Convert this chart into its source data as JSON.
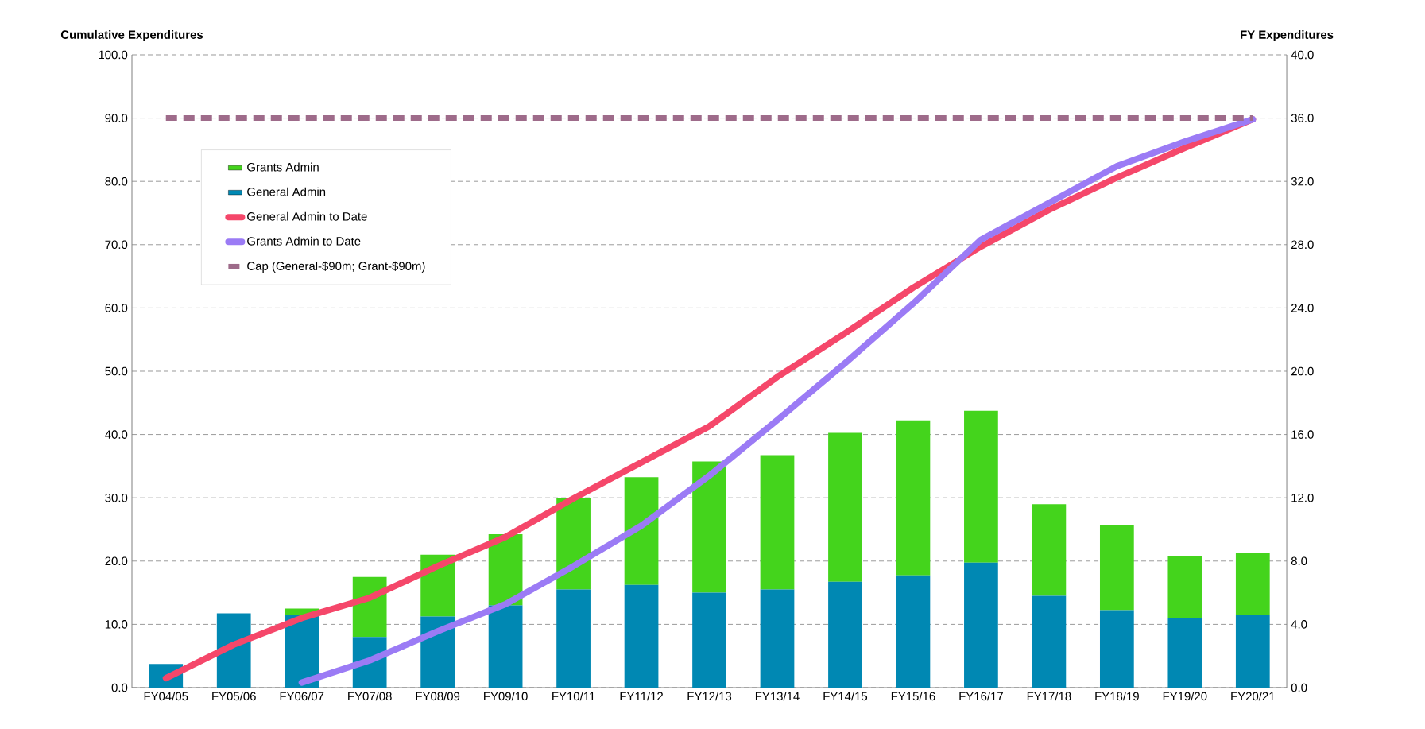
{
  "chart_data": {
    "type": "bar",
    "stacked": true,
    "categories": [
      "FY04/05",
      "FY05/06",
      "FY06/07",
      "FY07/08",
      "FY08/09",
      "FY09/10",
      "FY10/11",
      "FY11/12",
      "FY12/13",
      "FY13/14",
      "FY14/15",
      "FY15/16",
      "FY16/17",
      "FY17/18",
      "FY18/19",
      "FY19/20",
      "FY20/21"
    ],
    "ylabel": "Cumulative Expenditures",
    "y2label": "FY Expenditures",
    "ylim": [
      0,
      100
    ],
    "yticks": [
      {
        "value": 0,
        "label": "0.0"
      },
      {
        "value": 10,
        "label": "10.0"
      },
      {
        "value": 20,
        "label": "20.0"
      },
      {
        "value": 30,
        "label": "30.0"
      },
      {
        "value": 40,
        "label": "40.0"
      },
      {
        "value": 50,
        "label": "50.0"
      },
      {
        "value": 60,
        "label": "60.0"
      },
      {
        "value": 70,
        "label": "70.0"
      },
      {
        "value": 80,
        "label": "80.0"
      },
      {
        "value": 90,
        "label": "90.0"
      },
      {
        "value": 100,
        "label": "100.0"
      }
    ],
    "y2lim": [
      0,
      40
    ],
    "y2ticks": [
      {
        "value": 0,
        "label": "0.0"
      },
      {
        "value": 4,
        "label": "4.0"
      },
      {
        "value": 8,
        "label": "8.0"
      },
      {
        "value": 12,
        "label": "12.0"
      },
      {
        "value": 16,
        "label": "16.0"
      },
      {
        "value": 20,
        "label": "20.0"
      },
      {
        "value": 24,
        "label": "24.0"
      },
      {
        "value": 28,
        "label": "28.0"
      },
      {
        "value": 32,
        "label": "32.0"
      },
      {
        "value": 36,
        "label": "36.0"
      },
      {
        "value": 40,
        "label": "40.0"
      }
    ],
    "grid": "y",
    "legend": "top left",
    "series": [
      {
        "name": "General Admin",
        "axis": "y2",
        "color": "#0088b3",
        "values": [
          1.5,
          4.7,
          4.6,
          3.2,
          4.5,
          5.2,
          6.2,
          6.5,
          6.0,
          6.2,
          6.7,
          7.1,
          7.9,
          5.8,
          4.9,
          4.4,
          4.6
        ]
      },
      {
        "name": "Grants Admin",
        "axis": "y2",
        "color": "#44d41c",
        "values": [
          0,
          0,
          0.4,
          3.8,
          3.9,
          4.5,
          5.8,
          6.8,
          8.3,
          8.5,
          9.4,
          9.8,
          9.6,
          5.8,
          5.4,
          3.9,
          3.9
        ]
      },
      {
        "name": "General Admin to Date",
        "type": "line",
        "color": "#f5476a",
        "values": [
          1.5,
          6.8,
          11.0,
          14.2,
          19.2,
          23.8,
          29.9,
          35.6,
          41.3,
          49.1,
          56.0,
          63.2,
          69.7,
          75.5,
          80.6,
          85.3,
          89.8
        ]
      },
      {
        "name": "Grants Admin to Date",
        "type": "line",
        "color": "#9b7bf5",
        "values": [
          null,
          null,
          0.8,
          4.3,
          8.9,
          13.2,
          19.2,
          25.6,
          33.5,
          42.3,
          51.3,
          60.7,
          70.8,
          76.6,
          82.4,
          86.3,
          89.8
        ]
      }
    ],
    "ref_lines": [
      {
        "axis": "y",
        "value": 90,
        "label": "Cap (General-$90m; Grant-$90m)",
        "color": "#9e6b8a",
        "line_style": "dashed"
      }
    ]
  }
}
